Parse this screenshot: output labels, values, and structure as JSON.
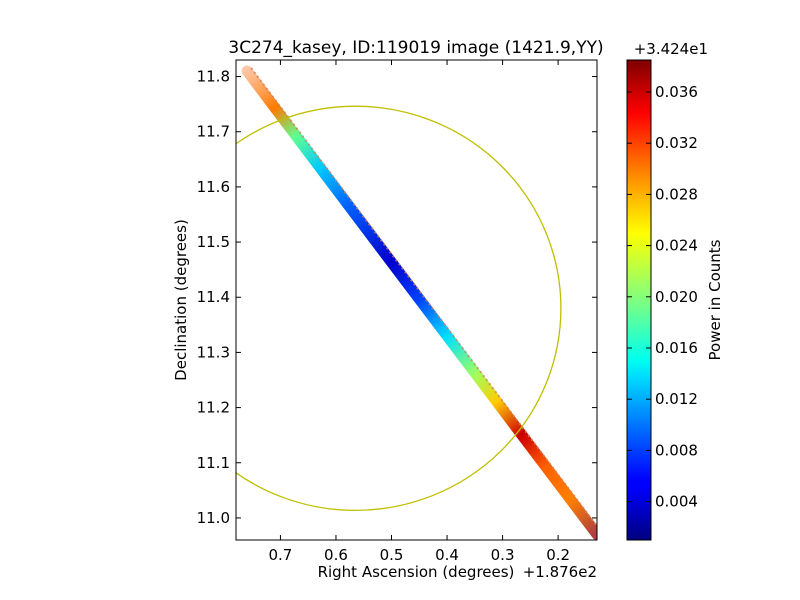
{
  "chart_data": {
    "type": "heatmap",
    "title": "3C274_kasey, ID:119019 image (1421.9,YY)",
    "xlabel": "Right Ascension (degrees)",
    "ylabel": "Declination (degrees)",
    "x_offset_text": "+1.876e2",
    "xlim": [
      0.78,
      0.13
    ],
    "ylim": [
      10.96,
      11.83
    ],
    "x_ticks": [
      0.7,
      0.6,
      0.5,
      0.4,
      0.3,
      0.2
    ],
    "x_tick_labels": [
      "0.7",
      "0.6",
      "0.5",
      "0.4",
      "0.3",
      "0.2"
    ],
    "y_ticks": [
      11.0,
      11.1,
      11.2,
      11.3,
      11.4,
      11.5,
      11.6,
      11.7,
      11.8
    ],
    "y_tick_labels": [
      "11.0",
      "11.1",
      "11.2",
      "11.3",
      "11.4",
      "11.5",
      "11.6",
      "11.7",
      "11.8"
    ],
    "colorbar": {
      "label": "Power in Counts",
      "offset_text": "+3.424e1",
      "range": [
        0.001,
        0.0385
      ],
      "ticks": [
        0.004,
        0.008,
        0.012,
        0.016,
        0.02,
        0.024,
        0.028,
        0.032,
        0.036
      ],
      "tick_labels": [
        "0.004",
        "0.008",
        "0.012",
        "0.016",
        "0.020",
        "0.024",
        "0.028",
        "0.032",
        "0.036"
      ],
      "colormap": "jet"
    },
    "circle": {
      "center_x": 0.565,
      "center_y": 11.38,
      "radius": 0.37,
      "color": "#bfbf00"
    },
    "stripe": {
      "centerline": [
        [
          0.76,
          11.81
        ],
        [
          0.13,
          10.97
        ]
      ],
      "samples": [
        {
          "x": 0.755,
          "y": 11.8,
          "value": 0.03
        },
        {
          "x": 0.72,
          "y": 11.745,
          "value": 0.028
        },
        {
          "x": 0.69,
          "y": 11.7,
          "value": 0.018
        },
        {
          "x": 0.65,
          "y": 11.64,
          "value": 0.012
        },
        {
          "x": 0.6,
          "y": 11.57,
          "value": 0.006
        },
        {
          "x": 0.55,
          "y": 11.51,
          "value": 0.004
        },
        {
          "x": 0.5,
          "y": 11.45,
          "value": 0.002
        },
        {
          "x": 0.45,
          "y": 11.39,
          "value": 0.003
        },
        {
          "x": 0.4,
          "y": 11.33,
          "value": 0.01
        },
        {
          "x": 0.35,
          "y": 11.27,
          "value": 0.018
        },
        {
          "x": 0.32,
          "y": 11.23,
          "value": 0.028
        },
        {
          "x": 0.29,
          "y": 11.17,
          "value": 0.037
        },
        {
          "x": 0.26,
          "y": 11.13,
          "value": 0.034
        },
        {
          "x": 0.22,
          "y": 11.08,
          "value": 0.03
        },
        {
          "x": 0.18,
          "y": 11.03,
          "value": 0.032
        },
        {
          "x": 0.14,
          "y": 10.98,
          "value": 0.036
        }
      ]
    }
  }
}
